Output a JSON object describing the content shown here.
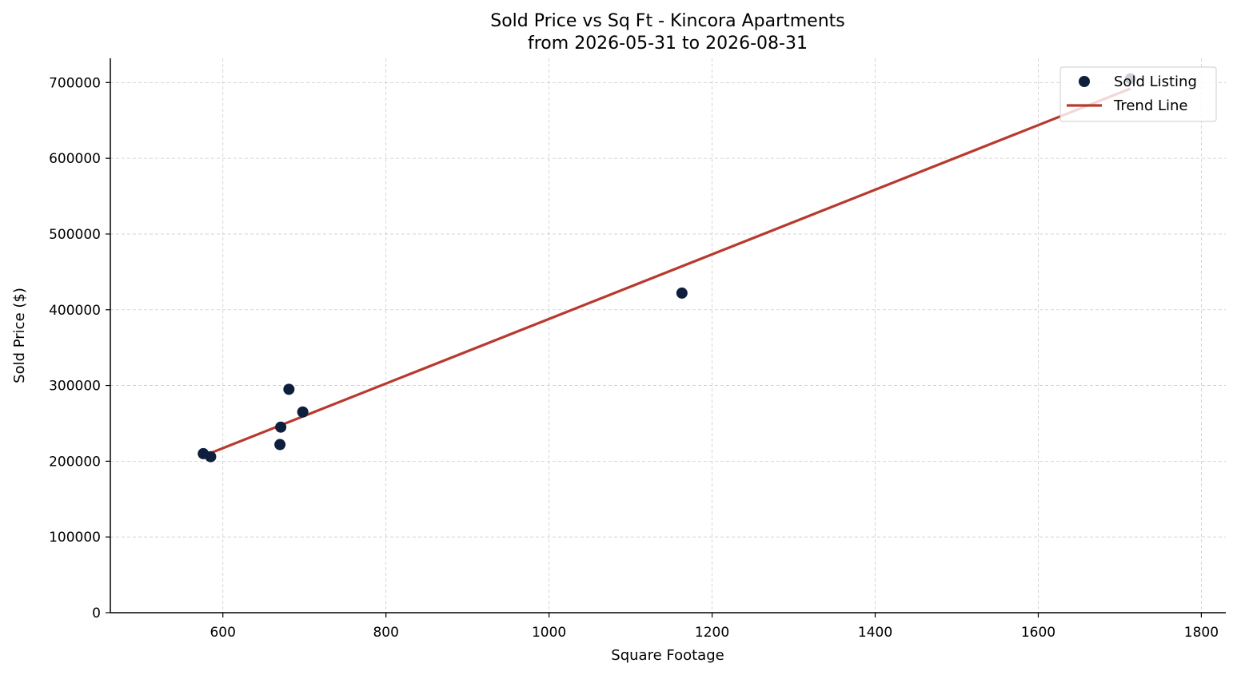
{
  "chart_data": {
    "type": "scatter",
    "title": "Sold Price vs Sq Ft - Kincora Apartments",
    "subtitle": "from 2026-05-31 to 2026-08-31",
    "xlabel": "Square Footage",
    "ylabel": "Sold Price ($)",
    "xlim": [
      462,
      1830
    ],
    "ylim": [
      0,
      732000
    ],
    "x_ticks": [
      600,
      800,
      1000,
      1200,
      1400,
      1600,
      1800
    ],
    "y_ticks": [
      0,
      100000,
      200000,
      300000,
      400000,
      500000,
      600000,
      700000
    ],
    "grid": true,
    "legend_position": "top-right",
    "series": [
      {
        "name": "Sold Listing",
        "kind": "scatter",
        "color": "#0d1f3c",
        "points": [
          {
            "x": 576,
            "y": 210000
          },
          {
            "x": 585,
            "y": 206000
          },
          {
            "x": 670,
            "y": 222000
          },
          {
            "x": 671,
            "y": 245000
          },
          {
            "x": 681,
            "y": 295000
          },
          {
            "x": 698,
            "y": 265000
          },
          {
            "x": 1163,
            "y": 422000
          },
          {
            "x": 1713,
            "y": 705000
          }
        ]
      },
      {
        "name": "Trend Line",
        "kind": "line",
        "color": "#b83a2e",
        "points": [
          {
            "x": 576,
            "y": 207000
          },
          {
            "x": 1713,
            "y": 692000
          }
        ]
      }
    ]
  }
}
